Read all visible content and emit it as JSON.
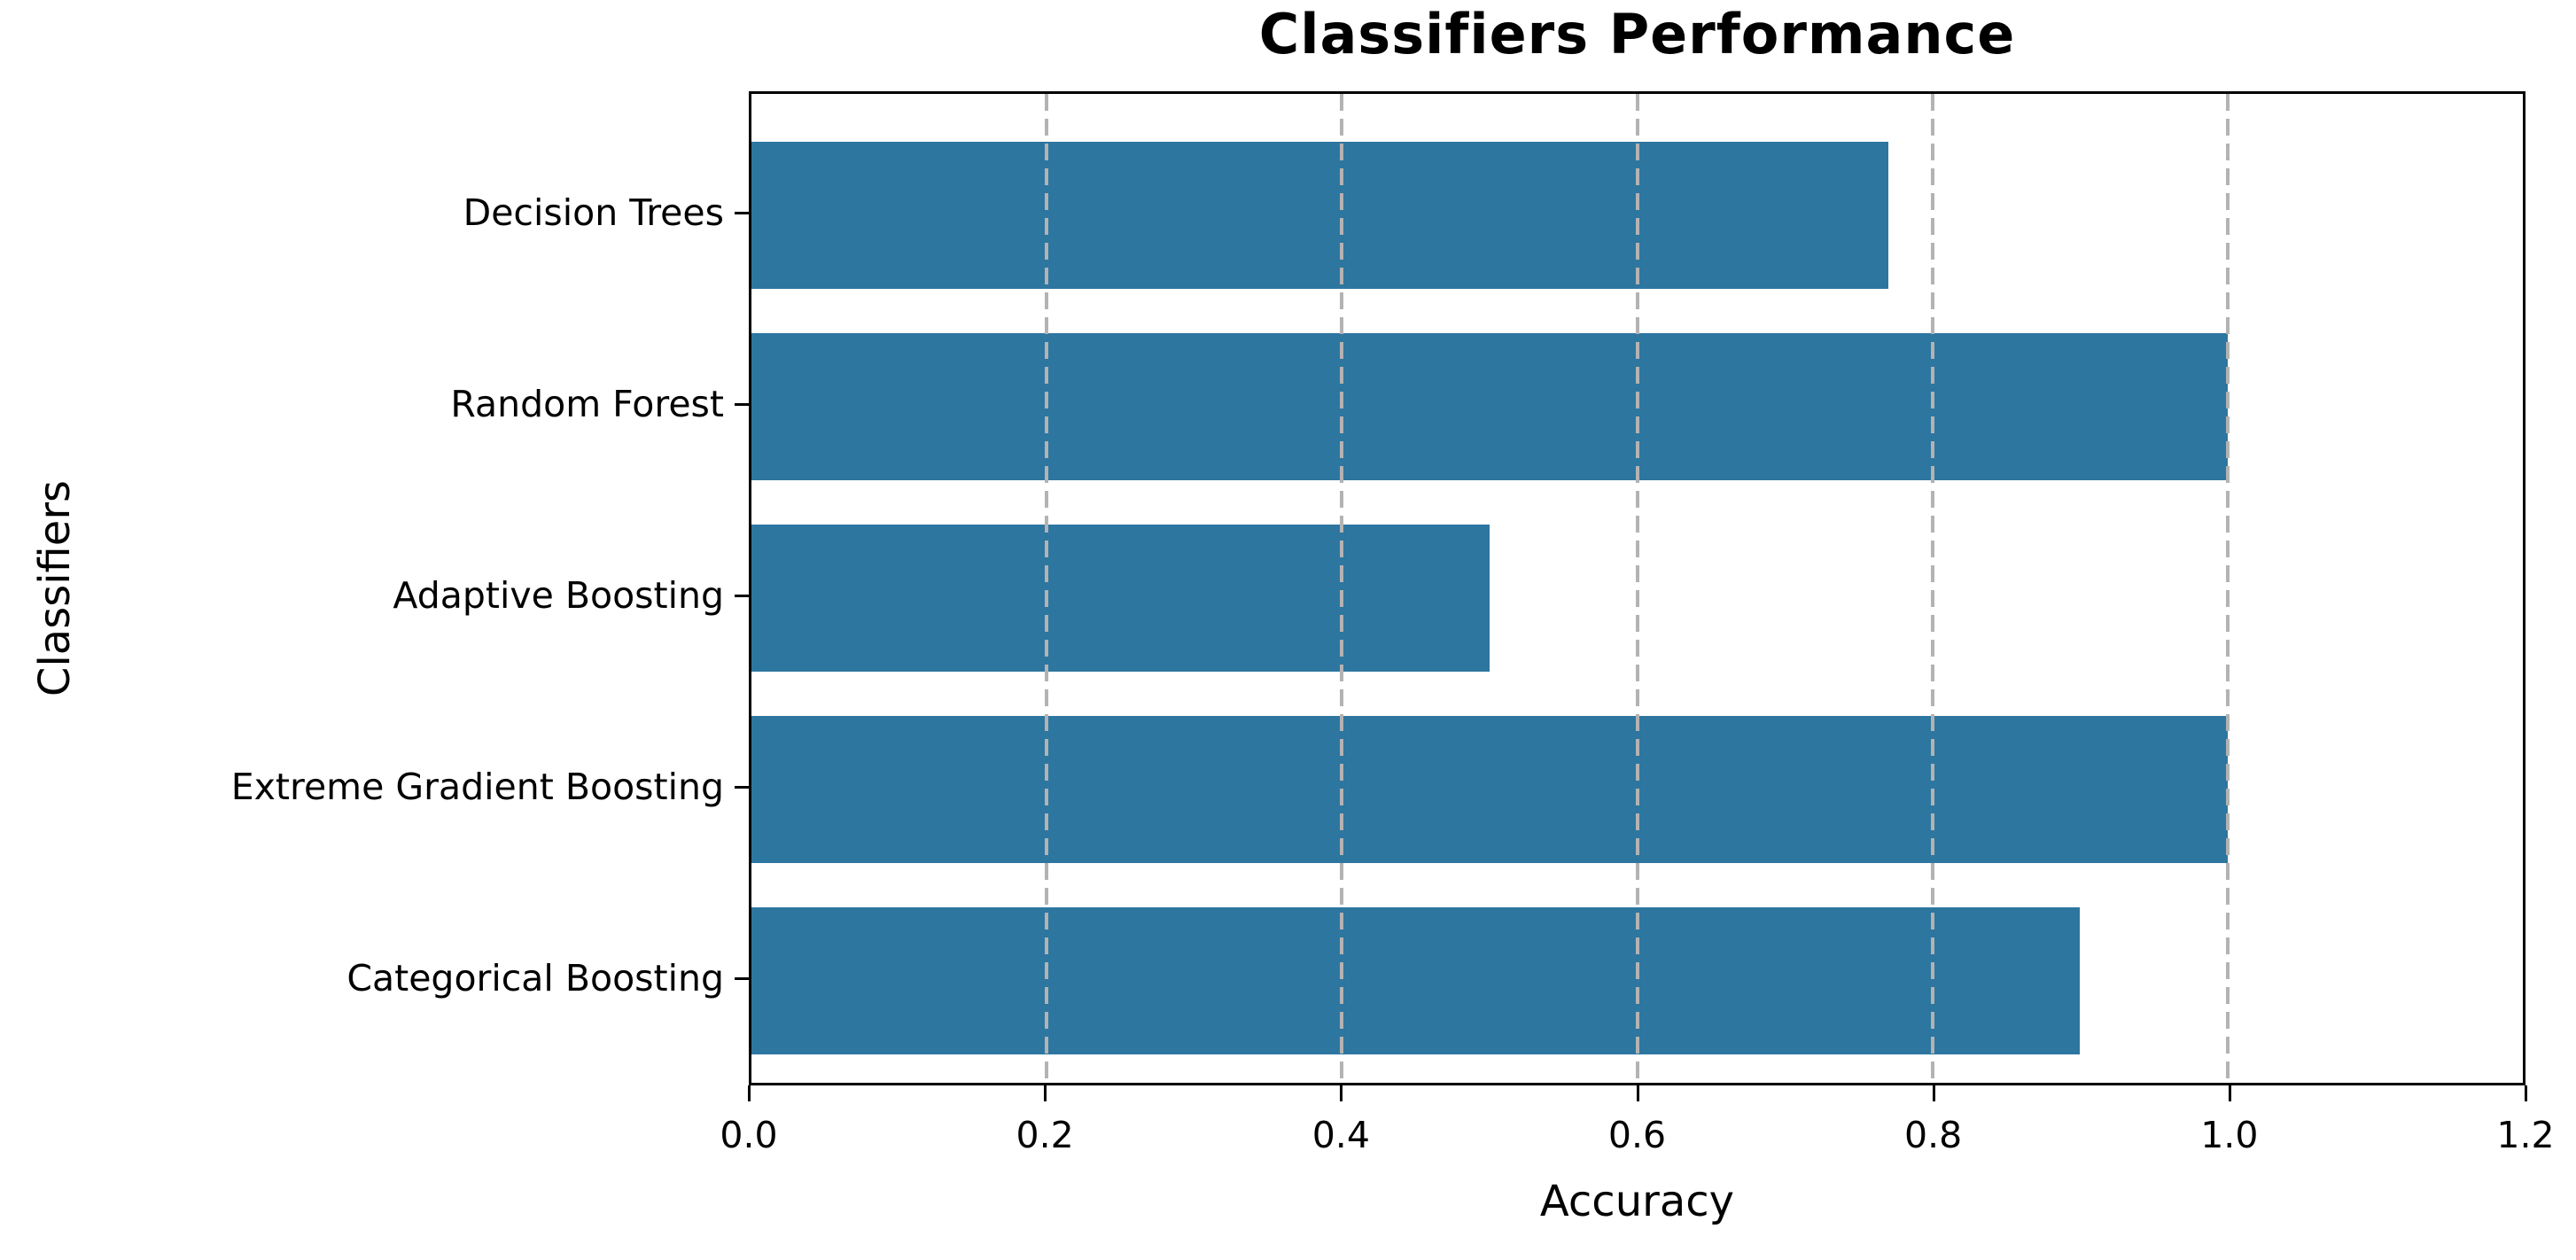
{
  "chart_data": {
    "type": "bar",
    "orientation": "horizontal",
    "title": "Classifiers Performance",
    "xlabel": "Accuracy",
    "ylabel": "Classifiers",
    "categories": [
      "Decision Trees",
      "Random Forest",
      "Adaptive Boosting",
      "Extreme Gradient Boosting",
      "Categorical Boosting"
    ],
    "values": [
      0.77,
      1.0,
      0.5,
      1.0,
      0.9
    ],
    "xlim": [
      0,
      1.2
    ],
    "xticks": [
      "0.0",
      "0.2",
      "0.4",
      "0.6",
      "0.8",
      "1.0",
      "1.2"
    ],
    "grid": "vertical dashed gridlines at 0.2 to 1.0, drawn over bars",
    "legend": "none",
    "bar_color": "#2d76a0",
    "grid_color": "#b3b3b3",
    "spine_color": "#000000",
    "background_color": "#ffffff"
  }
}
